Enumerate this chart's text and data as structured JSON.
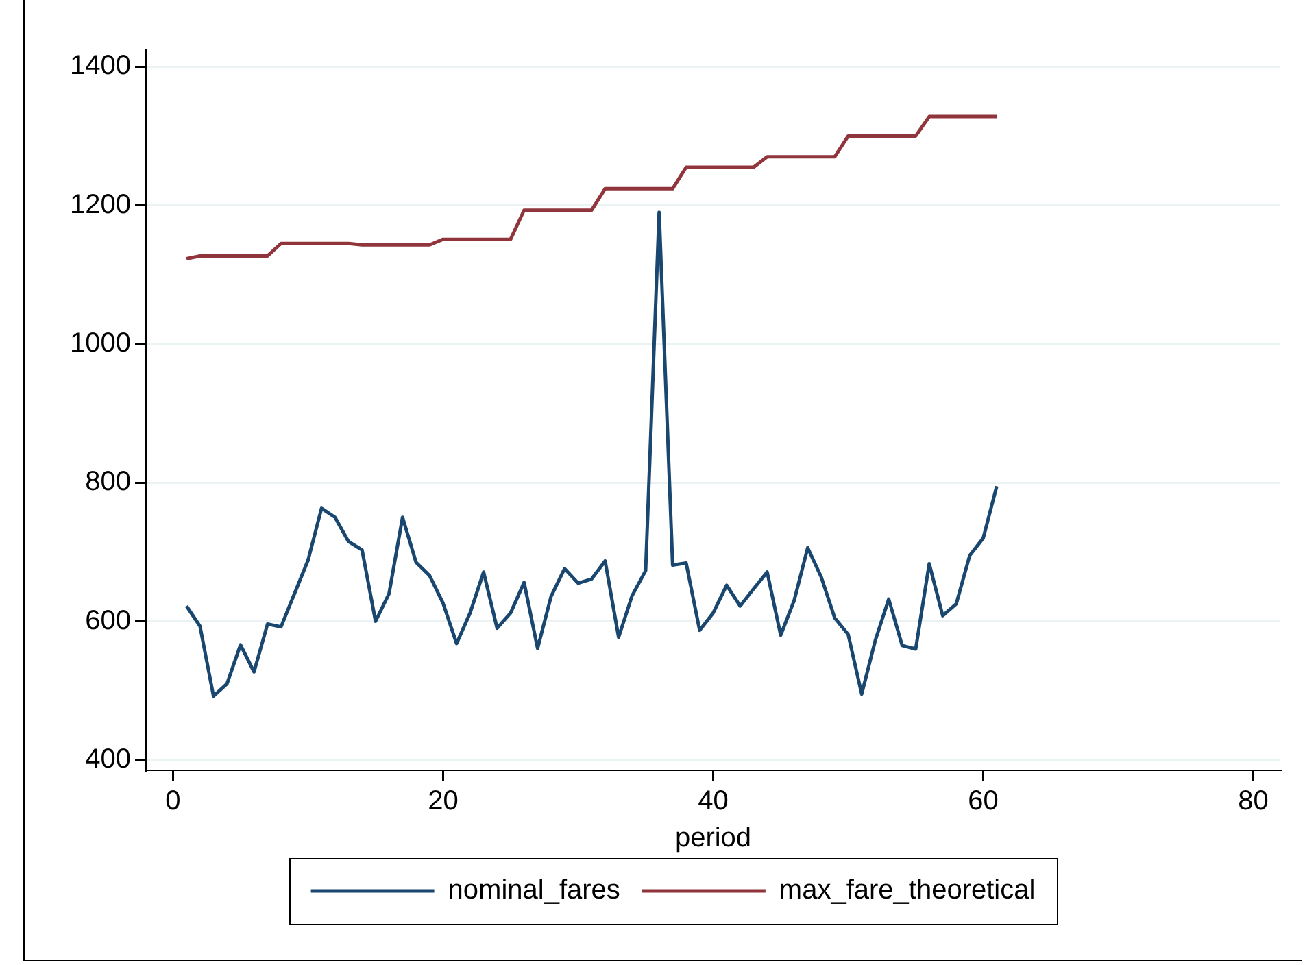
{
  "chart_data": {
    "type": "line",
    "xlabel": "period",
    "x": [
      1,
      2,
      3,
      4,
      5,
      6,
      7,
      8,
      9,
      10,
      11,
      12,
      13,
      14,
      15,
      16,
      17,
      18,
      19,
      20,
      21,
      22,
      23,
      24,
      25,
      26,
      27,
      28,
      29,
      30,
      31,
      32,
      33,
      34,
      35,
      36,
      37,
      38,
      39,
      40,
      41,
      42,
      43,
      44,
      45,
      46,
      47,
      48,
      49,
      50,
      51,
      52,
      53,
      54,
      55,
      56,
      57,
      58,
      59,
      60,
      61
    ],
    "series": [
      {
        "name": "nominal_fares",
        "color": "#1a476f",
        "values": [
          622,
          593,
          492,
          510,
          566,
          527,
          596,
          592,
          640,
          688,
          763,
          750,
          715,
          703,
          600,
          640,
          750,
          685,
          666,
          626,
          568,
          612,
          671,
          590,
          612,
          656,
          561,
          636,
          676,
          655,
          661,
          687,
          577,
          637,
          673,
          1190,
          681,
          684,
          587,
          612,
          652,
          622,
          647,
          671,
          580,
          630,
          706,
          664,
          605,
          581,
          495,
          572,
          632,
          565,
          560,
          683,
          608,
          625,
          695,
          720,
          795
        ]
      },
      {
        "name": "max_fare_theoretical",
        "color": "#90353b",
        "values": [
          1123,
          1127,
          1127,
          1127,
          1127,
          1127,
          1127,
          1145,
          1145,
          1145,
          1145,
          1145,
          1145,
          1143,
          1143,
          1143,
          1143,
          1143,
          1143,
          1151,
          1151,
          1151,
          1151,
          1151,
          1151,
          1193,
          1193,
          1193,
          1193,
          1193,
          1193,
          1224,
          1224,
          1224,
          1224,
          1224,
          1224,
          1255,
          1255,
          1255,
          1255,
          1255,
          1255,
          1270,
          1270,
          1270,
          1270,
          1270,
          1270,
          1300,
          1300,
          1300,
          1300,
          1300,
          1300,
          1328,
          1328,
          1328,
          1328,
          1328,
          1328
        ]
      }
    ],
    "xlim": [
      -2,
      82
    ],
    "xticks": [
      0,
      20,
      40,
      60,
      80
    ],
    "ylim": [
      385,
      1425
    ],
    "yticks": [
      400,
      600,
      800,
      1000,
      1200,
      1400
    ],
    "grid": "y",
    "legend": "bottom",
    "marker": "none",
    "line_style": "solid"
  }
}
